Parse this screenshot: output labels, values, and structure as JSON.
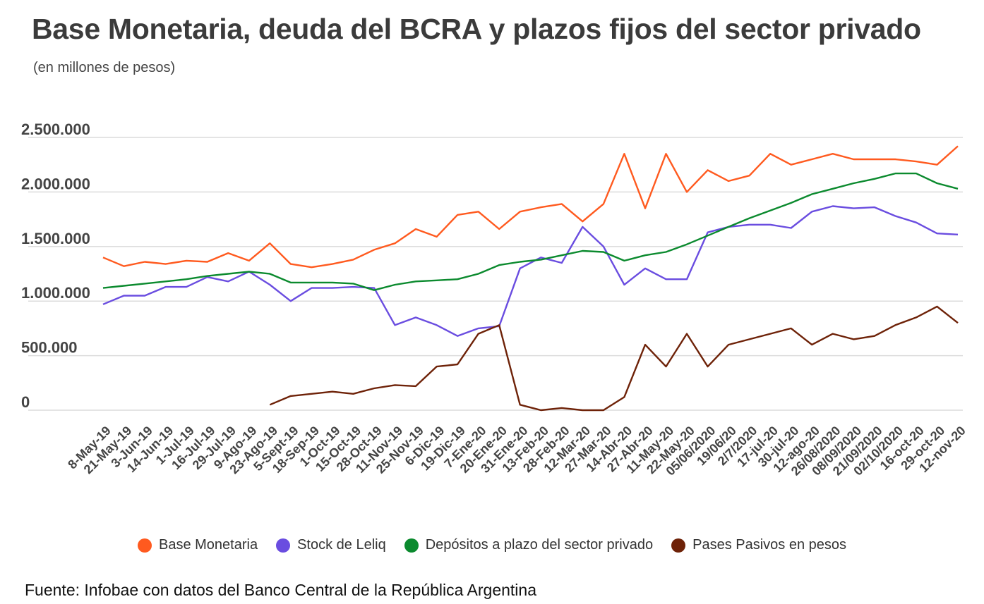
{
  "title": "Base Monetaria, deuda del BCRA y plazos fijos del sector privado",
  "subtitle": "(en millones de pesos)",
  "source": "Fuente: Infobae con datos del Banco Central de la República Argentina",
  "chart_data": {
    "type": "line",
    "title": "Base Monetaria, deuda del BCRA y plazos fijos del sector privado",
    "subtitle": "(en millones de pesos)",
    "ylim": [
      0,
      2500000
    ],
    "yticks": [
      0,
      500000,
      1000000,
      1500000,
      2000000,
      2500000
    ],
    "ytick_labels": [
      "0",
      "500.000",
      "1.000.000",
      "1.500.000",
      "2.000.000",
      "2.500.000"
    ],
    "grid": true,
    "legend": "bottom",
    "categories": [
      "8-May-19",
      "21-May-19",
      "3-Jun-19",
      "14-Jun-19",
      "1-Jul-19",
      "16-Jul-19",
      "29-Jul-19",
      "9-Ago-19",
      "23-Ago-19",
      "5-Sept-19",
      "18-Sep-19",
      "1-Oct-19",
      "15-Oct-19",
      "28-Oct-19",
      "11-Nov-19",
      "25-Nov-19",
      "6-Dic-19",
      "19-Dic-19",
      "7-Ene-20",
      "20-Ene-20",
      "31-Ene-20",
      "13-Feb-20",
      "28-Feb-20",
      "12-Mar-20",
      "27-Mar-20",
      "14-Abr-20",
      "27-Abr-20",
      "11-May-20",
      "22-May-20",
      "05/06/2020",
      "19/06/20",
      "2/7/2020",
      "17-jul-20",
      "30-jul-20",
      "12-ago-20",
      "26/08/2020",
      "08/09/2020",
      "21/09/2020",
      "02/10/2020",
      "16-oct-20",
      "29-oct-20",
      "12-nov-20"
    ],
    "series": [
      {
        "name": "Base Monetaria",
        "color": "#ff5a1f",
        "values": [
          1400000,
          1320000,
          1360000,
          1340000,
          1370000,
          1360000,
          1440000,
          1370000,
          1530000,
          1340000,
          1310000,
          1340000,
          1380000,
          1470000,
          1530000,
          1660000,
          1590000,
          1790000,
          1820000,
          1660000,
          1820000,
          1860000,
          1890000,
          1730000,
          1890000,
          2350000,
          1850000,
          2350000,
          2000000,
          2200000,
          2100000,
          2150000,
          2350000,
          2250000,
          2300000,
          2350000,
          2300000,
          2300000,
          2300000,
          2280000,
          2250000,
          2420000
        ]
      },
      {
        "name": "Stock de Leliq",
        "color": "#6a4de0",
        "values": [
          970000,
          1050000,
          1050000,
          1130000,
          1130000,
          1220000,
          1180000,
          1270000,
          1150000,
          1000000,
          1120000,
          1120000,
          1130000,
          1120000,
          780000,
          850000,
          780000,
          680000,
          750000,
          770000,
          1300000,
          1400000,
          1350000,
          1680000,
          1500000,
          1150000,
          1300000,
          1200000,
          1200000,
          1630000,
          1680000,
          1700000,
          1700000,
          1670000,
          1820000,
          1870000,
          1850000,
          1860000,
          1780000,
          1720000,
          1620000,
          1610000
        ]
      },
      {
        "name": "Depósitos a plazo del sector privado",
        "color": "#0b8a2e",
        "values": [
          1120000,
          1140000,
          1160000,
          1180000,
          1200000,
          1230000,
          1250000,
          1270000,
          1250000,
          1170000,
          1170000,
          1170000,
          1160000,
          1100000,
          1150000,
          1180000,
          1190000,
          1200000,
          1250000,
          1330000,
          1360000,
          1380000,
          1420000,
          1460000,
          1450000,
          1370000,
          1420000,
          1450000,
          1520000,
          1600000,
          1680000,
          1760000,
          1830000,
          1900000,
          1980000,
          2030000,
          2080000,
          2120000,
          2170000,
          2170000,
          2080000,
          2030000
        ]
      },
      {
        "name": "Pases Pasivos en pesos",
        "color": "#6e2208",
        "values": [
          null,
          null,
          null,
          null,
          null,
          null,
          null,
          null,
          50000,
          130000,
          150000,
          170000,
          150000,
          200000,
          230000,
          220000,
          400000,
          420000,
          700000,
          780000,
          50000,
          0,
          20000,
          0,
          0,
          120000,
          600000,
          400000,
          700000,
          400000,
          600000,
          650000,
          700000,
          750000,
          600000,
          700000,
          650000,
          680000,
          780000,
          850000,
          950000,
          800000
        ]
      }
    ]
  }
}
